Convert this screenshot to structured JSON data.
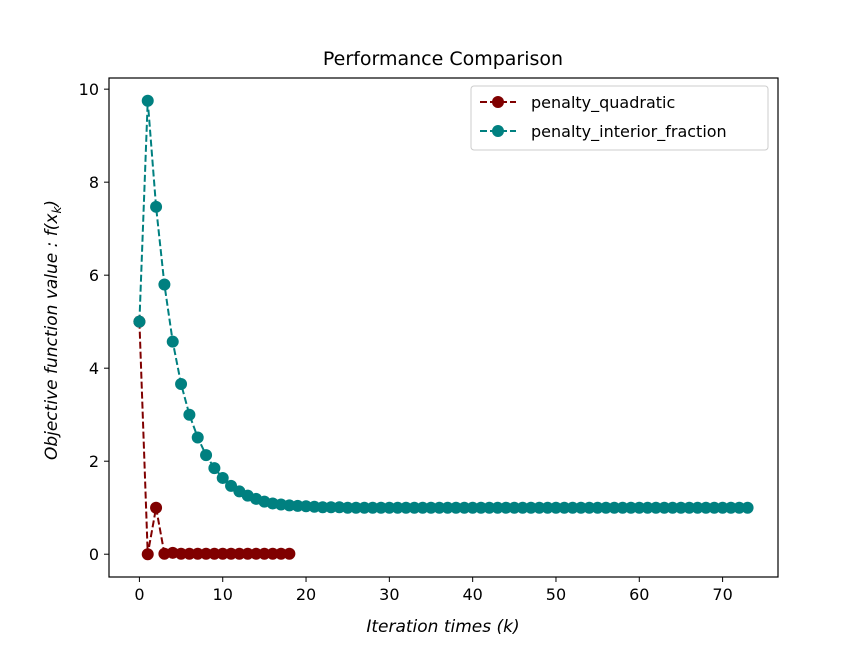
{
  "chart_data": {
    "type": "line",
    "title": "Performance Comparison",
    "xlabel": "Iteration times (k)",
    "ylabel": "Objective function value : f(x_k)",
    "xlim": [
      -3.65,
      76.65
    ],
    "ylim": [
      -0.49,
      10.24
    ],
    "xticks": [
      0,
      10,
      20,
      30,
      40,
      50,
      60,
      70
    ],
    "yticks": [
      0,
      2,
      4,
      6,
      8,
      10
    ],
    "legend_position": "top-right",
    "grid": false,
    "series": [
      {
        "name": "penalty_quadratic",
        "color": "#800000",
        "line_style": "dashed",
        "marker": "circle",
        "x": [
          0,
          1,
          2,
          3,
          4,
          5,
          6,
          7,
          8,
          9,
          10,
          11,
          12,
          13,
          14,
          15,
          16,
          17,
          18
        ],
        "y": [
          5.0,
          0.0,
          1.0,
          0.01,
          0.03,
          0.01,
          0.01,
          0.01,
          0.01,
          0.01,
          0.01,
          0.01,
          0.01,
          0.01,
          0.01,
          0.01,
          0.01,
          0.01,
          0.01
        ]
      },
      {
        "name": "penalty_interior_fraction",
        "color": "#008080",
        "line_style": "dashed",
        "marker": "circle",
        "x": [
          0,
          1,
          2,
          3,
          4,
          5,
          6,
          7,
          8,
          9,
          10,
          11,
          12,
          13,
          14,
          15,
          16,
          17,
          18,
          19,
          20,
          21,
          22,
          23,
          24,
          25,
          26,
          27,
          28,
          29,
          30,
          31,
          32,
          33,
          34,
          35,
          36,
          37,
          38,
          39,
          40,
          41,
          42,
          43,
          44,
          45,
          46,
          47,
          48,
          49,
          50,
          51,
          52,
          53,
          54,
          55,
          56,
          57,
          58,
          59,
          60,
          61,
          62,
          63,
          64,
          65,
          66,
          67,
          68,
          69,
          70,
          71,
          72,
          73
        ],
        "y": [
          5.0,
          9.75,
          7.47,
          5.8,
          4.57,
          3.66,
          3.0,
          2.51,
          2.13,
          1.85,
          1.64,
          1.47,
          1.35,
          1.26,
          1.19,
          1.13,
          1.09,
          1.07,
          1.05,
          1.04,
          1.03,
          1.02,
          1.01,
          1.01,
          1.01,
          1.0,
          1.0,
          1.0,
          1.0,
          1.0,
          1.0,
          1.0,
          1.0,
          1.0,
          1.0,
          1.0,
          1.0,
          1.0,
          1.0,
          1.0,
          1.0,
          1.0,
          1.0,
          1.0,
          1.0,
          1.0,
          1.0,
          1.0,
          1.0,
          1.0,
          1.0,
          1.0,
          1.0,
          1.0,
          1.0,
          1.0,
          1.0,
          1.0,
          1.0,
          1.0,
          1.0,
          1.0,
          1.0,
          1.0,
          1.0,
          1.0,
          1.0,
          1.0,
          1.0,
          1.0,
          1.0,
          1.0,
          1.0,
          1.0
        ]
      }
    ]
  }
}
